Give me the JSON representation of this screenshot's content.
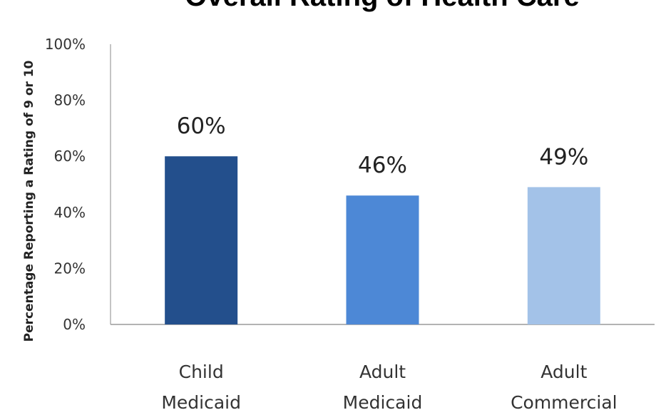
{
  "chart_data": {
    "type": "bar",
    "title": "Overall Rating of Health Care",
    "xlabel": "",
    "ylabel": "Percentage Reporting a Rating of 9 or 10",
    "categories": [
      [
        "Child",
        "Medicaid"
      ],
      [
        "Adult",
        "Medicaid"
      ],
      [
        "Adult",
        "Commercial"
      ]
    ],
    "values": [
      60,
      46,
      49
    ],
    "data_labels": [
      "60%",
      "46%",
      "49%"
    ],
    "bar_colors": [
      "#234f8c",
      "#4d88d6",
      "#a3c2e8"
    ],
    "ylim": [
      0,
      100
    ],
    "yticks": [
      0,
      20,
      40,
      60,
      80,
      100
    ],
    "ytick_labels": [
      "0%",
      "20%",
      "40%",
      "60%",
      "80%",
      "100%"
    ],
    "grid": false,
    "legend": "none"
  }
}
